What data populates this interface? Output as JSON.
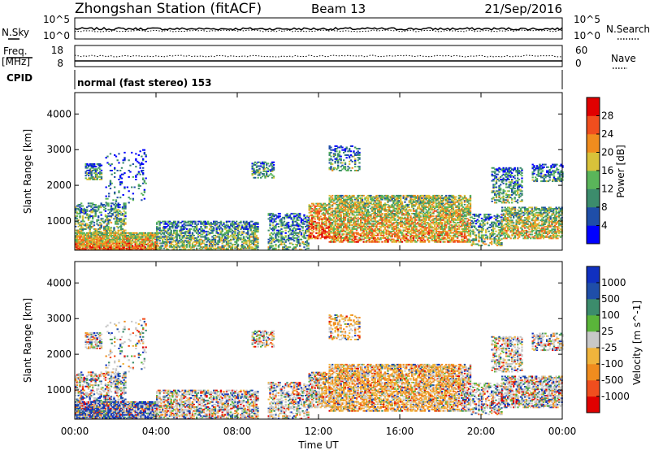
{
  "header": {
    "title": "Zhongshan Station (fitACF)",
    "beam": "Beam 13",
    "date": "21/Sep/2016"
  },
  "noise_panel": {
    "left_label": "N.Sky",
    "right_label": "N.Search",
    "tick_top": "10^5",
    "tick_bottom": "10^0"
  },
  "freq_panel": {
    "left_label_1": "Freq.",
    "left_label_2": "[MHz]",
    "right_label": "Nave",
    "left_ticks": [
      "18",
      "8"
    ],
    "right_ticks": [
      "60",
      "0"
    ]
  },
  "cpid": {
    "label": "CPID",
    "value": "normal (fast stereo) 153"
  },
  "chart_data": [
    {
      "type": "heatmap",
      "title": "",
      "xlabel": "Time UT",
      "ylabel": "Slant Range [km]",
      "x_ticks": [
        "00:00",
        "04:00",
        "08:00",
        "12:00",
        "16:00",
        "20:00",
        "00:00"
      ],
      "y_ticks": [
        1000,
        2000,
        3000,
        4000
      ],
      "xlim_hours": [
        0,
        24
      ],
      "ylim_km": [
        180,
        4600
      ],
      "colorbar": {
        "label": "Power [dB]",
        "ticks": [
          "28",
          "24",
          "20",
          "16",
          "12",
          "8",
          "4"
        ],
        "colors": [
          "#0000ff",
          "#1f4ea8",
          "#3c8c6c",
          "#5ab55a",
          "#d8c23a",
          "#f08c1e",
          "#f04e1e",
          "#e00000"
        ]
      }
    },
    {
      "type": "heatmap",
      "title": "",
      "xlabel": "Time UT",
      "ylabel": "Slant Range [km]",
      "x_ticks": [
        "00:00",
        "04:00",
        "08:00",
        "12:00",
        "16:00",
        "20:00",
        "00:00"
      ],
      "y_ticks": [
        1000,
        2000,
        3000,
        4000
      ],
      "xlim_hours": [
        0,
        24
      ],
      "ylim_km": [
        180,
        4600
      ],
      "colorbar": {
        "label": "Velocity [m s^-1]",
        "ticks": [
          "1000",
          "500",
          "100",
          "25",
          "-25",
          "-100",
          "-500",
          "-1000"
        ],
        "colors": [
          "#e00000",
          "#f04e1e",
          "#f08c1e",
          "#f0b43c",
          "#c8c8c8",
          "#5ab53a",
          "#3c8c6c",
          "#1f4ea8",
          "#1030c0"
        ]
      }
    }
  ]
}
